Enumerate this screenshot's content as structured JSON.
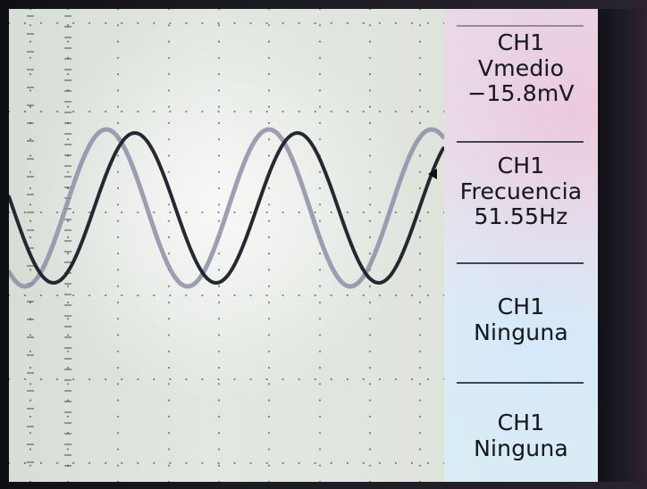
{
  "display": {
    "colors": {
      "screen_background": "#dfe4db",
      "trace_ch1": "#1b1d27",
      "trace_ch2": "#8f8ea8",
      "graticule": "#222222",
      "panel_text": "#171a1e"
    },
    "icons": {
      "trigger_marker": "left-arrow-icon"
    }
  },
  "measurements": [
    {
      "channel": "CH1",
      "name": "Vmedio",
      "value": "−15.8mV"
    },
    {
      "channel": "CH1",
      "name": "Frecuencia",
      "value": "51.55Hz"
    },
    {
      "channel": "CH1",
      "name": "Ninguna"
    },
    {
      "channel": "CH1",
      "name": "Ninguna"
    }
  ]
}
